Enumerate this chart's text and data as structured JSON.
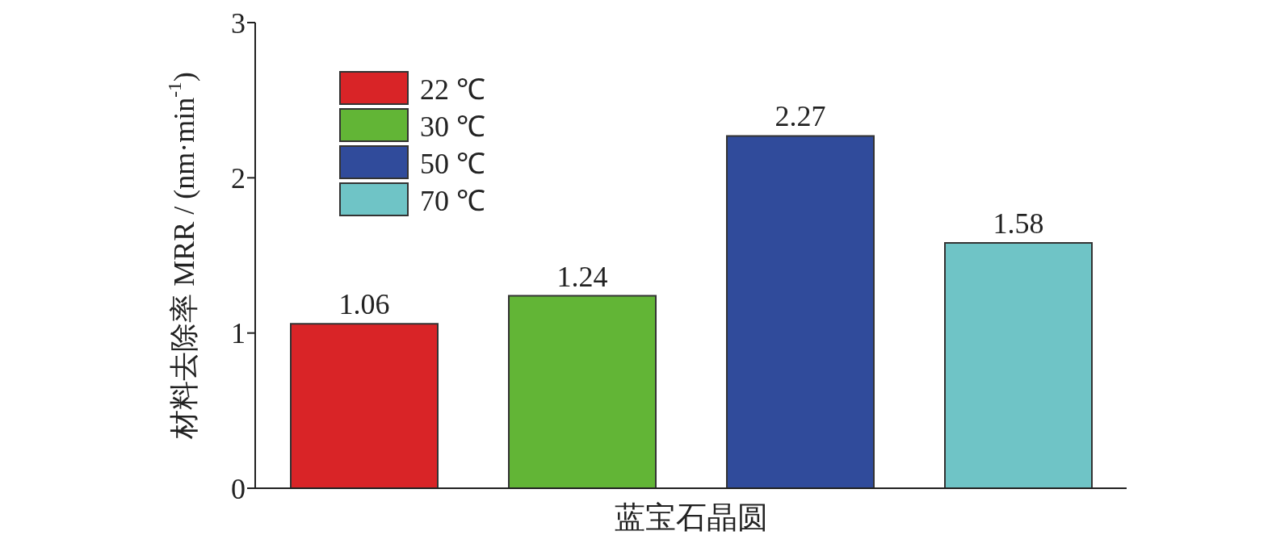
{
  "chart_data": {
    "type": "bar",
    "categories": [
      "蓝宝石晶圆"
    ],
    "ylabel": "材料去除率 MRR / (nm·min$^{-1}$)",
    "series": [
      {
        "name": "22 ℃",
        "color": "#d92427",
        "values": [
          1.06
        ]
      },
      {
        "name": "30 ℃",
        "color": "#62b536",
        "values": [
          1.24
        ]
      },
      {
        "name": "50 ℃",
        "color": "#304b9b",
        "values": [
          2.27
        ]
      },
      {
        "name": "70 ℃",
        "color": "#6fc4c6",
        "values": [
          1.58
        ]
      }
    ],
    "ylim": [
      0,
      3
    ],
    "yticks": [
      0,
      1,
      2,
      3
    ],
    "data_labels": true,
    "legend": "top left",
    "grid": false
  }
}
